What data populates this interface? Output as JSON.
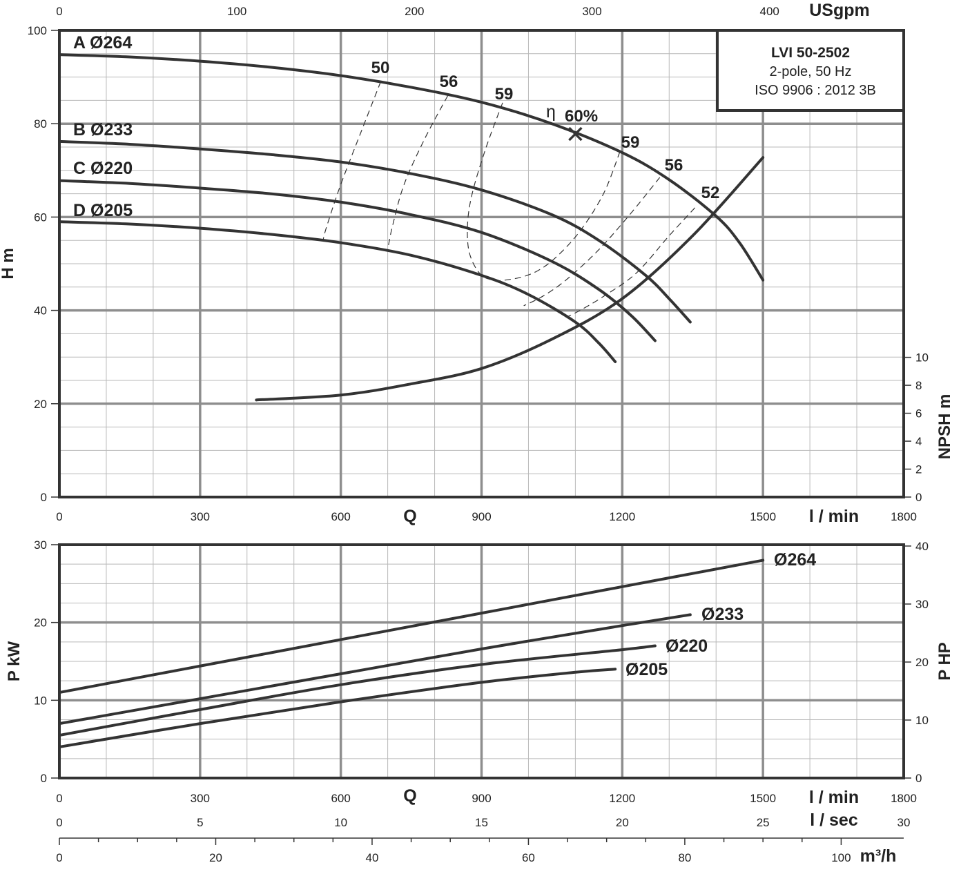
{
  "chart_data": [
    {
      "type": "line",
      "name": "head-chart",
      "info_box": {
        "model": "LVI 50-2502",
        "line2": "2-pole, 50 Hz",
        "line3": "ISO 9906 : 2012 3B"
      },
      "x_unit": "l / min",
      "x_label": "Q",
      "xlim": [
        0,
        1800
      ],
      "x_ticks": [
        "0",
        "300",
        "600",
        "900",
        "1200",
        "1500",
        "1800"
      ],
      "top_unit": "USgpm",
      "top_ticks": [
        "0",
        "100",
        "200",
        "300",
        "400"
      ],
      "top_tick_values": [
        0,
        100,
        200,
        300,
        400
      ],
      "ylabel": "H m",
      "ylim": [
        0,
        100
      ],
      "y_ticks": [
        "0",
        "20",
        "40",
        "60",
        "80",
        "100"
      ],
      "npsh_label": "NPSH m",
      "npsh_ticks": [
        "0",
        "2",
        "4",
        "6",
        "8",
        "10"
      ],
      "npsh_range": [
        0,
        33.4
      ],
      "series": [
        {
          "name": "A Ø264",
          "label": "A Ø264",
          "x": [
            0,
            150,
            300,
            450,
            600,
            750,
            900,
            1050,
            1200,
            1300,
            1400,
            1450,
            1500
          ],
          "y": [
            94.8,
            94.3,
            93.4,
            92.1,
            90.3,
            87.8,
            84.6,
            80.0,
            73.8,
            68.0,
            60.2,
            54.5,
            46.5
          ]
        },
        {
          "name": "B Ø233",
          "label": "B Ø233",
          "x": [
            0,
            150,
            300,
            450,
            600,
            750,
            900,
            1050,
            1150,
            1250,
            1300,
            1345
          ],
          "y": [
            76.2,
            75.6,
            74.6,
            73.4,
            71.8,
            69.3,
            65.8,
            60.5,
            55.0,
            47.5,
            42.5,
            37.5
          ]
        },
        {
          "name": "C Ø220",
          "label": "C Ø220",
          "x": [
            0,
            150,
            300,
            450,
            600,
            750,
            900,
            1050,
            1150,
            1220,
            1270
          ],
          "y": [
            67.8,
            67.2,
            66.2,
            65.0,
            63.2,
            60.5,
            56.7,
            50.5,
            44.5,
            38.8,
            33.5
          ]
        },
        {
          "name": "D Ø205",
          "label": "D Ø205",
          "x": [
            0,
            150,
            300,
            450,
            600,
            750,
            900,
            1000,
            1100,
            1150,
            1185
          ],
          "y": [
            59.0,
            58.5,
            57.6,
            56.3,
            54.5,
            51.8,
            47.5,
            43.4,
            37.5,
            33.0,
            29.0
          ]
        },
        {
          "name": "NPSH",
          "x": [
            420,
            600,
            750,
            900,
            1050,
            1200,
            1350,
            1500
          ],
          "y": [
            6.95,
            7.3,
            8.1,
            9.2,
            11.3,
            14.2,
            18.7,
            24.3
          ]
        }
      ],
      "efficiency_lines": [
        {
          "label": "50",
          "x": [
            685,
            650,
            600,
            570,
            562
          ],
          "y": [
            89.0,
            80.0,
            67.0,
            58.0,
            55.0
          ]
        },
        {
          "label": "56",
          "x": [
            828,
            780,
            735,
            710,
            700
          ],
          "y": [
            86.0,
            77.0,
            67.0,
            58.0,
            53.0
          ]
        },
        {
          "label": "59",
          "x": [
            945,
            910,
            880,
            870,
            875,
            900,
            935
          ],
          "y": [
            84.5,
            75.0,
            65.0,
            58.0,
            52.0,
            47.5,
            46.3
          ]
        },
        {
          "label": "59",
          "x": [
            1195,
            1160,
            1110,
            1060,
            1020,
            980,
            935
          ],
          "y": [
            74.0,
            65.0,
            57.0,
            51.5,
            48.5,
            47.0,
            46.3
          ]
        },
        {
          "label": "56",
          "x": [
            1280,
            1220,
            1150,
            1080,
            1030,
            990
          ],
          "y": [
            68.5,
            61.0,
            53.0,
            46.5,
            43.0,
            41.0
          ]
        },
        {
          "label": "52",
          "x": [
            1355,
            1300,
            1230,
            1160,
            1110,
            1080
          ],
          "y": [
            62.0,
            56.0,
            48.0,
            43.0,
            40.0,
            38.5
          ]
        }
      ],
      "bep": {
        "label": "60%",
        "eta": "η",
        "x": 1100,
        "y": 77.8
      }
    },
    {
      "type": "line",
      "name": "power-chart",
      "x_unit": "l / min",
      "x_label": "Q",
      "xlim": [
        0,
        1800
      ],
      "x_ticks": [
        "0",
        "300",
        "600",
        "900",
        "1200",
        "1500",
        "1800"
      ],
      "ylabel": "P kW",
      "ylim": [
        0,
        30
      ],
      "y_ticks": [
        "0",
        "10",
        "20",
        "30"
      ],
      "hp_label": "P HP",
      "hp_ticks": [
        "0",
        "10",
        "20",
        "30",
        "40"
      ],
      "sec_unit": "l / sec",
      "sec_ticks": [
        "0",
        "5",
        "10",
        "15",
        "20",
        "25",
        "30"
      ],
      "m3h_unit": "m³/h",
      "m3h_ticks": [
        "0",
        "20",
        "40",
        "60",
        "80",
        "100"
      ],
      "m3h_tick_values": [
        0,
        20,
        40,
        60,
        80,
        100
      ],
      "series": [
        {
          "name": "Ø264",
          "label": "Ø264",
          "x": [
            0,
            300,
            600,
            900,
            1200,
            1500
          ],
          "y": [
            11.0,
            14.4,
            17.8,
            21.2,
            24.6,
            28.0
          ]
        },
        {
          "name": "Ø233",
          "label": "Ø233",
          "x": [
            0,
            300,
            600,
            900,
            1200,
            1345
          ],
          "y": [
            7.0,
            10.2,
            13.4,
            16.6,
            19.6,
            21.0
          ]
        },
        {
          "name": "Ø220",
          "label": "Ø220",
          "x": [
            0,
            300,
            600,
            900,
            1200,
            1270
          ],
          "y": [
            5.5,
            8.8,
            12.0,
            14.6,
            16.5,
            17.0
          ]
        },
        {
          "name": "Ø205",
          "label": "Ø205",
          "x": [
            0,
            300,
            600,
            900,
            1100,
            1185
          ],
          "y": [
            4.0,
            7.0,
            9.8,
            12.3,
            13.6,
            14.0
          ]
        }
      ]
    }
  ]
}
